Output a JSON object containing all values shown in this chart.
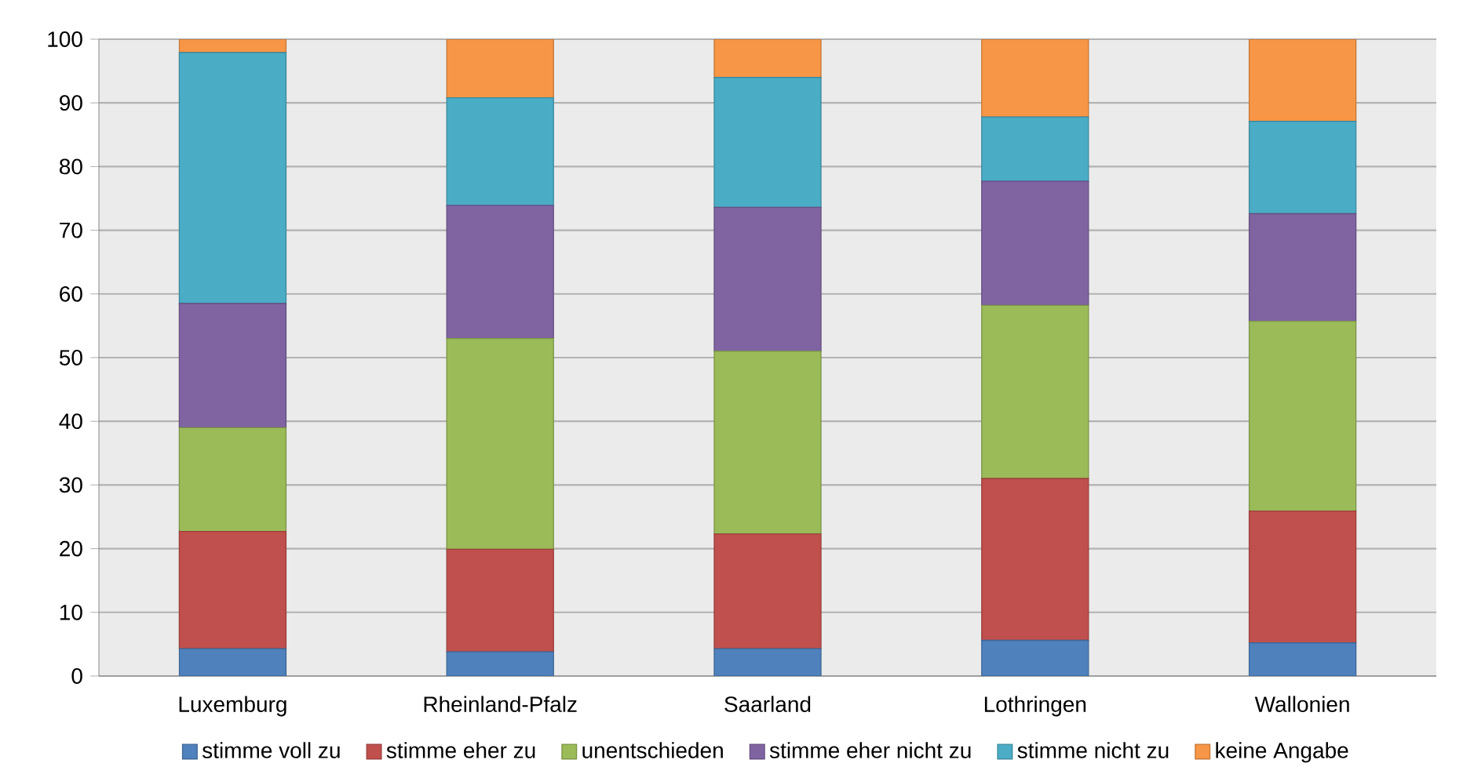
{
  "chart_data": {
    "type": "bar",
    "stacked": true,
    "categories": [
      "Luxemburg",
      "Rheinland-Pfalz",
      "Saarland",
      "Lothringen",
      "Wallonien"
    ],
    "series": [
      {
        "name": "stimme voll zu",
        "color": "#4f81bd",
        "values": [
          4.3,
          3.8,
          4.3,
          5.6,
          5.2
        ]
      },
      {
        "name": "stimme eher zu",
        "color": "#c0504d",
        "values": [
          18.4,
          16.1,
          18.0,
          25.4,
          20.7
        ]
      },
      {
        "name": "unentschieden",
        "color": "#9bbb59",
        "values": [
          16.3,
          33.1,
          28.7,
          27.2,
          29.8
        ]
      },
      {
        "name": "stimme eher nicht zu",
        "color": "#8064a2",
        "values": [
          19.5,
          20.9,
          22.6,
          19.5,
          16.9
        ]
      },
      {
        "name": "stimme nicht zu",
        "color": "#4bacc6",
        "values": [
          39.4,
          16.9,
          20.4,
          10.1,
          14.5
        ]
      },
      {
        "name": "keine Angabe",
        "color": "#f79646",
        "values": [
          2.1,
          9.2,
          6.0,
          12.2,
          12.9
        ]
      }
    ],
    "ylim": [
      0,
      100
    ],
    "yticks": [
      0,
      10,
      20,
      30,
      40,
      50,
      60,
      70,
      80,
      90,
      100
    ],
    "grid": "y",
    "legend": "bottom"
  }
}
